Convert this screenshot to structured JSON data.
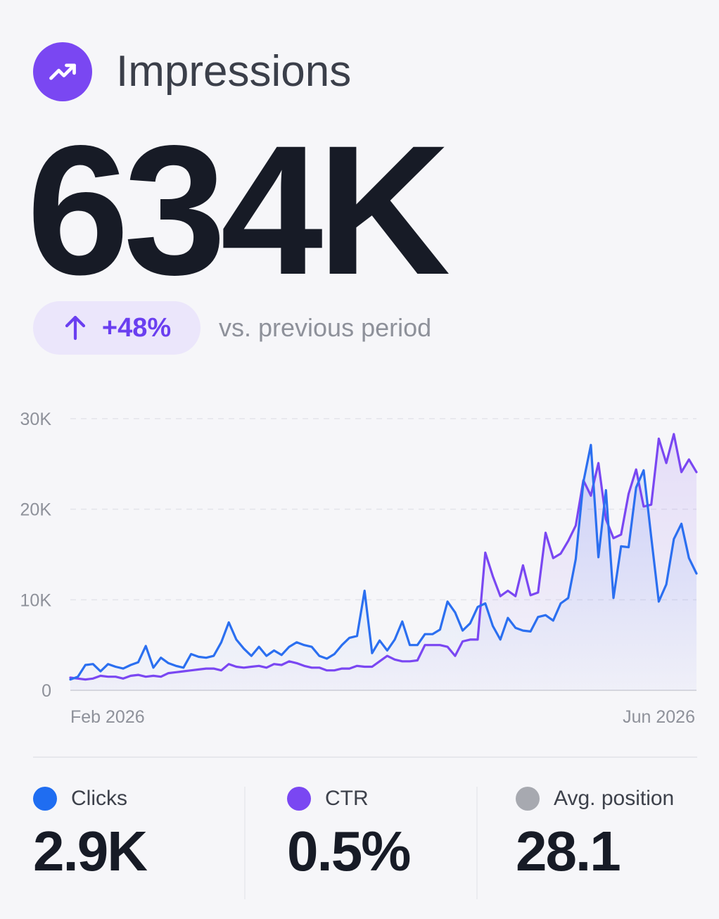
{
  "header": {
    "title": "Impressions",
    "icon": "trending-up-icon",
    "icon_bg": "#7a47f2"
  },
  "metric": {
    "value": "634K"
  },
  "delta": {
    "value": "+48%",
    "icon": "arrow-up-icon",
    "label": "vs. previous period",
    "color": "#6a3ff0"
  },
  "chart_data": {
    "type": "area",
    "y_ticks": [
      "30K",
      "20K",
      "10K",
      "0"
    ],
    "ylim": [
      0,
      30000
    ],
    "x_tick_labels": [
      "Feb 2026",
      "Jun 2026"
    ],
    "grid": "horizontal dashed",
    "series": [
      {
        "color": "#7a47f2",
        "values": [
          1400,
          1300,
          1200,
          1300,
          1600,
          1500,
          1500,
          1300,
          1600,
          1700,
          1500,
          1600,
          1500,
          1900,
          2000,
          2100,
          2200,
          2300,
          2400,
          2400,
          2200,
          2900,
          2600,
          2500,
          2600,
          2700,
          2500,
          2900,
          2800,
          3200,
          3000,
          2700,
          2500,
          2500,
          2200,
          2200,
          2400,
          2400,
          2700,
          2600,
          2600,
          3200,
          3800,
          3400,
          3200,
          3200,
          3300,
          5000,
          5000,
          5000,
          4800,
          3800,
          5400,
          5600,
          5600,
          15200,
          12600,
          10400,
          11000,
          10400,
          13800,
          10500,
          10800,
          17400,
          14600,
          15100,
          16500,
          18200,
          23200,
          21500,
          25100,
          18900,
          16800,
          17200,
          21700,
          24400,
          20300,
          20500,
          27800,
          25100,
          28300,
          24100,
          25500,
          24100
        ],
        "fill": true
      },
      {
        "color": "#2b6ff0",
        "values": [
          1200,
          1500,
          2800,
          2900,
          2100,
          2900,
          2600,
          2400,
          2800,
          3100,
          4900,
          2500,
          3600,
          3000,
          2700,
          2500,
          4000,
          3700,
          3600,
          3800,
          5300,
          7500,
          5600,
          4600,
          3800,
          4800,
          3800,
          4400,
          3900,
          4800,
          5300,
          5000,
          4800,
          3800,
          3500,
          4000,
          5000,
          5800,
          6000,
          11000,
          4100,
          5500,
          4400,
          5600,
          7600,
          5000,
          5000,
          6200,
          6200,
          6700,
          9800,
          8600,
          6600,
          7400,
          9200,
          9600,
          7100,
          5600,
          8000,
          6900,
          6600,
          6500,
          8100,
          8300,
          7700,
          9600,
          10200,
          14500,
          23000,
          27100,
          14700,
          22100,
          10200,
          15900,
          15800,
          22400,
          24300,
          16900,
          9800,
          11700,
          16700,
          18400,
          14600,
          12900
        ],
        "fill": true
      }
    ]
  },
  "stats": [
    {
      "label": "Clicks",
      "value": "2.9K",
      "color": "#1f6df1"
    },
    {
      "label": "CTR",
      "value": "0.5%",
      "color": "#7a47f2"
    },
    {
      "label": "Avg. position",
      "value": "28.1",
      "color": "#a7a9b0"
    }
  ]
}
